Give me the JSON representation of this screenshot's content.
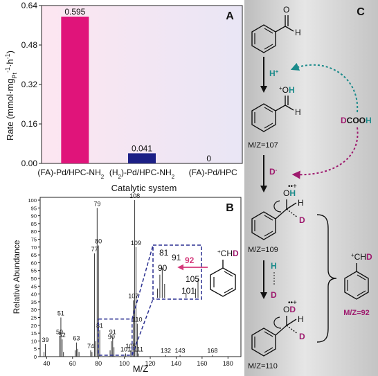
{
  "panels": {
    "a": {
      "letter": "A"
    },
    "b": {
      "letter": "B"
    },
    "c": {
      "letter": "C"
    }
  },
  "chart_data": [
    {
      "type": "bar",
      "panel": "A",
      "categories": [
        "(FA)-Pd/HPC-NH2",
        "(H2)-Pd/HPC-NH2",
        "(FA)-Pd/HPC"
      ],
      "values": [
        0.595,
        0.041,
        0
      ],
      "value_labels": [
        "0.595",
        "0.041",
        "0"
      ],
      "colors": [
        "#e0147a",
        "#1c1f86",
        "#9a9a9a"
      ],
      "xlabel": "Catalytic system",
      "ylabel": "Rate (mmol·mgPt-1·h-1)",
      "ylim": [
        0,
        0.64
      ],
      "yticks": [
        0.0,
        0.16,
        0.32,
        0.48,
        0.64
      ],
      "ytick_labels": [
        "0.00",
        "0.16",
        "0.32",
        "0.48",
        "0.64"
      ],
      "background": "pink-to-lavender gradient",
      "grid": false
    },
    {
      "type": "bar",
      "panel": "B",
      "subtype": "mass spectrum (stick plot)",
      "xlabel": "M/Z",
      "ylabel": "Relative Abundance",
      "xlim": [
        35,
        190
      ],
      "ylim": [
        0,
        100
      ],
      "xticks": [
        40,
        60,
        80,
        100,
        120,
        140,
        160,
        180
      ],
      "yticks": [
        0,
        5,
        10,
        15,
        20,
        25,
        30,
        35,
        40,
        45,
        50,
        55,
        60,
        65,
        70,
        75,
        80,
        85,
        90,
        95,
        100
      ],
      "peaks": [
        {
          "mz": 38,
          "ab": 3
        },
        {
          "mz": 39,
          "ab": 8
        },
        {
          "mz": 50,
          "ab": 13
        },
        {
          "mz": 51,
          "ab": 25
        },
        {
          "mz": 52,
          "ab": 11
        },
        {
          "mz": 53,
          "ab": 3
        },
        {
          "mz": 62,
          "ab": 4
        },
        {
          "mz": 63,
          "ab": 9
        },
        {
          "mz": 64,
          "ab": 5
        },
        {
          "mz": 65,
          "ab": 3
        },
        {
          "mz": 74,
          "ab": 4
        },
        {
          "mz": 75,
          "ab": 3
        },
        {
          "mz": 77,
          "ab": 66
        },
        {
          "mz": 78,
          "ab": 10
        },
        {
          "mz": 79,
          "ab": 95
        },
        {
          "mz": 80,
          "ab": 71
        },
        {
          "mz": 81,
          "ab": 17
        },
        {
          "mz": 89,
          "ab": 4
        },
        {
          "mz": 90,
          "ab": 10
        },
        {
          "mz": 91,
          "ab": 13
        },
        {
          "mz": 92,
          "ab": 6
        },
        {
          "mz": 101,
          "ab": 2
        },
        {
          "mz": 105,
          "ab": 4
        },
        {
          "mz": 106,
          "ab": 8
        },
        {
          "mz": 107,
          "ab": 36
        },
        {
          "mz": 108,
          "ab": 100
        },
        {
          "mz": 109,
          "ab": 70
        },
        {
          "mz": 110,
          "ab": 21
        },
        {
          "mz": 111,
          "ab": 2
        },
        {
          "mz": 132,
          "ab": 1
        },
        {
          "mz": 143,
          "ab": 1
        },
        {
          "mz": 168,
          "ab": 1
        }
      ],
      "peak_labels": [
        {
          "mz": 39,
          "ab": 8,
          "text": "39"
        },
        {
          "mz": 50,
          "ab": 13,
          "text": "50"
        },
        {
          "mz": 51,
          "ab": 25,
          "text": "51"
        },
        {
          "mz": 52,
          "ab": 11,
          "text": "52"
        },
        {
          "mz": 63,
          "ab": 9,
          "text": "63"
        },
        {
          "mz": 74,
          "ab": 4,
          "text": "74"
        },
        {
          "mz": 77,
          "ab": 66,
          "text": "77"
        },
        {
          "mz": 79,
          "ab": 95,
          "text": "79"
        },
        {
          "mz": 80,
          "ab": 71,
          "text": "80"
        },
        {
          "mz": 81,
          "ab": 17,
          "text": "81"
        },
        {
          "mz": 90,
          "ab": 10,
          "text": "90"
        },
        {
          "mz": 91,
          "ab": 13,
          "text": "91"
        },
        {
          "mz": 101,
          "ab": 2,
          "text": "101"
        },
        {
          "mz": 105,
          "ab": 4,
          "text": "105"
        },
        {
          "mz": 107,
          "ab": 36,
          "text": "107"
        },
        {
          "mz": 108,
          "ab": 100,
          "text": "108"
        },
        {
          "mz": 109,
          "ab": 70,
          "text": "109"
        },
        {
          "mz": 110,
          "ab": 21,
          "text": "110"
        },
        {
          "mz": 111,
          "ab": 2,
          "text": "111"
        },
        {
          "mz": 132,
          "ab": 1,
          "text": "132"
        },
        {
          "mz": 143,
          "ab": 1,
          "text": "143"
        },
        {
          "mz": 168,
          "ab": 1,
          "text": "168"
        }
      ],
      "zoom_box": {
        "mz_range": [
          80,
          106
        ],
        "ab_range": [
          0,
          24
        ]
      },
      "inset_labels": [
        "81",
        "91",
        "92",
        "90",
        "105",
        "101"
      ],
      "highlight_label": "92",
      "fragment_label": "+CHD"
    }
  ],
  "scheme": {
    "species_mz": [
      "M/Z=107",
      "M/Z=109",
      "M/Z=110"
    ],
    "reagent": "DCOOH",
    "steps": [
      "H+",
      "D-"
    ],
    "exchange": {
      "top": "H",
      "bottom": "D"
    },
    "fragment": "+CHD",
    "fragment_mz": "M/Z=92"
  },
  "colors": {
    "magenta": "#9e1a6e",
    "teal": "#1a8a8a",
    "dash_blue": "#2a2f90",
    "panel_c_bg_dark": "#c9c9c9"
  }
}
